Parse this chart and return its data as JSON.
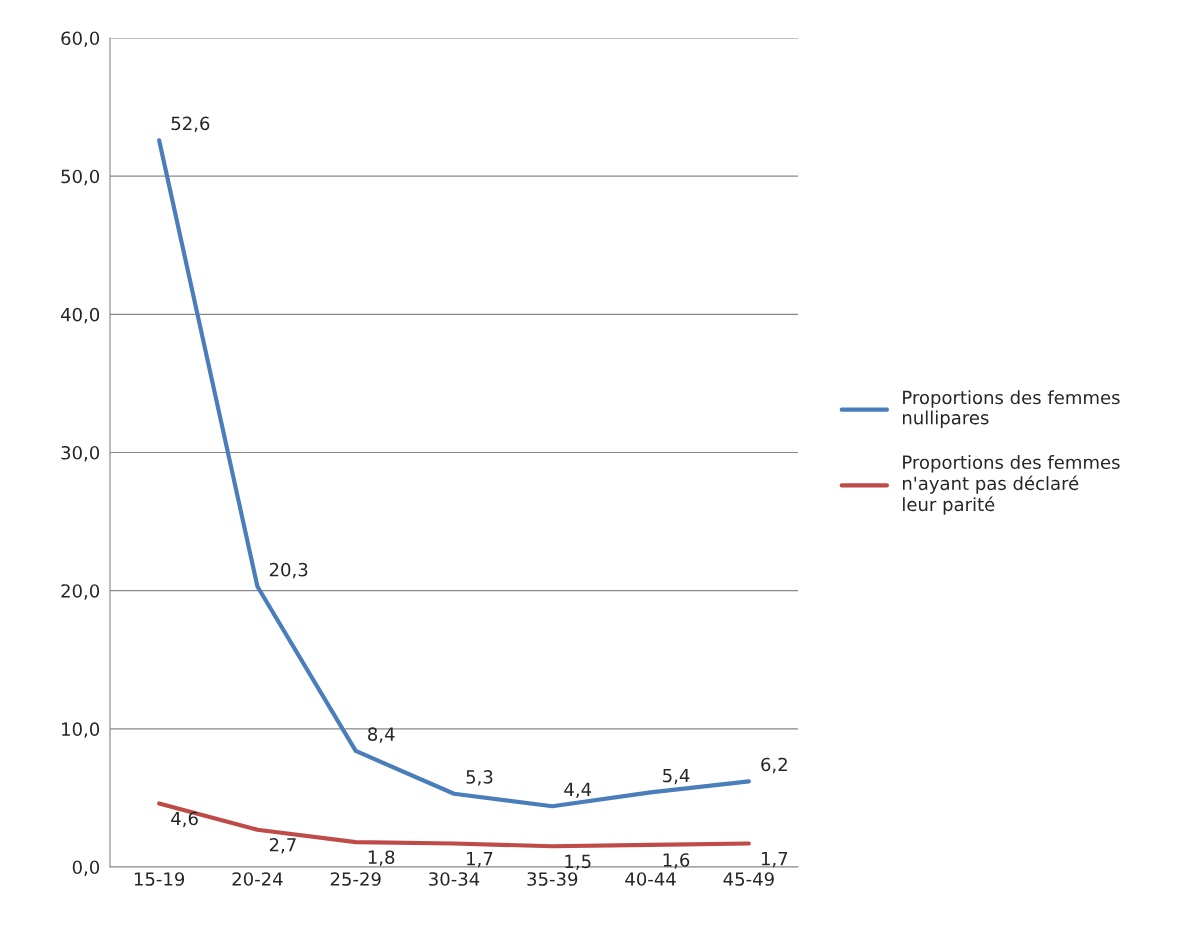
{
  "chart_data": {
    "type": "line",
    "categories": [
      "15-19",
      "20-24",
      "25-29",
      "30-34",
      "35-39",
      "40-44",
      "45-49"
    ],
    "series": [
      {
        "name": "Proportions des femmes nullipares",
        "color": "#4a7ebb",
        "values": [
          52.6,
          20.3,
          8.4,
          5.3,
          4.4,
          5.4,
          6.2
        ],
        "value_labels": [
          "52,6",
          "20,3",
          "8,4",
          "5,3",
          "4,4",
          "5,4",
          "6,2"
        ]
      },
      {
        "name": "Proportions des femmes n'ayant pas déclaré leur parité",
        "color": "#be4b48",
        "values": [
          4.6,
          2.7,
          1.8,
          1.7,
          1.5,
          1.6,
          1.7
        ],
        "value_labels": [
          "4,6",
          "2,7",
          "1,8",
          "1,7",
          "1,5",
          "1,6",
          "1,7"
        ]
      }
    ],
    "ylim": [
      0,
      60
    ],
    "yticks": [
      {
        "value": 0,
        "label": "0,0"
      },
      {
        "value": 10,
        "label": "10,0"
      },
      {
        "value": 20,
        "label": "20,0"
      },
      {
        "value": 30,
        "label": "30,0"
      },
      {
        "value": 40,
        "label": "40,0"
      },
      {
        "value": 50,
        "label": "50,0"
      },
      {
        "value": 60,
        "label": "60,0"
      }
    ],
    "grid": "y",
    "legend": "right",
    "marker": "none",
    "line_style": "solid"
  }
}
